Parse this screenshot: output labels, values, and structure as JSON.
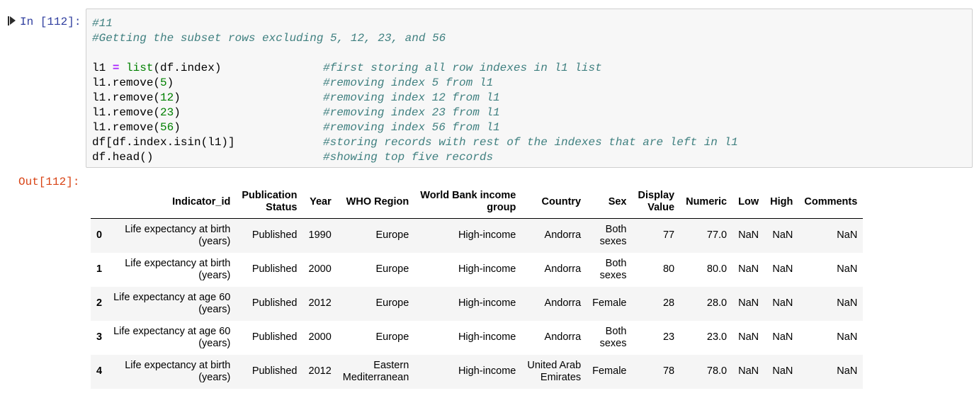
{
  "cell": {
    "in_prompt": "In [112]:",
    "out_prompt": "Out[112]:",
    "code_lines": [
      {
        "segments": [
          {
            "t": "#11",
            "k": "comment"
          }
        ],
        "comment": ""
      },
      {
        "segments": [
          {
            "t": "#Getting the subset rows excluding 5, 12, 23, and 56",
            "k": "comment"
          }
        ],
        "comment": ""
      },
      {
        "segments": [],
        "comment": ""
      },
      {
        "segments": [
          {
            "t": "l1 ",
            "k": "plain"
          },
          {
            "t": "=",
            "k": "op"
          },
          {
            "t": " ",
            "k": "plain"
          },
          {
            "t": "list",
            "k": "builtin"
          },
          {
            "t": "(df.index)",
            "k": "plain"
          }
        ],
        "comment": "#first storing all row indexes in l1 list"
      },
      {
        "segments": [
          {
            "t": "l1.remove(",
            "k": "plain"
          },
          {
            "t": "5",
            "k": "num"
          },
          {
            "t": ")",
            "k": "plain"
          }
        ],
        "comment": "#removing index 5 from l1"
      },
      {
        "segments": [
          {
            "t": "l1.remove(",
            "k": "plain"
          },
          {
            "t": "12",
            "k": "num"
          },
          {
            "t": ")",
            "k": "plain"
          }
        ],
        "comment": "#removing index 12 from l1"
      },
      {
        "segments": [
          {
            "t": "l1.remove(",
            "k": "plain"
          },
          {
            "t": "23",
            "k": "num"
          },
          {
            "t": ")",
            "k": "plain"
          }
        ],
        "comment": "#removing index 23 from l1"
      },
      {
        "segments": [
          {
            "t": "l1.remove(",
            "k": "plain"
          },
          {
            "t": "56",
            "k": "num"
          },
          {
            "t": ")",
            "k": "plain"
          }
        ],
        "comment": "#removing index 56 from l1"
      },
      {
        "segments": [
          {
            "t": "df[df.index.isin(l1)]",
            "k": "plain"
          }
        ],
        "comment": "#storing records with rest of the indexes that are left in l1"
      },
      {
        "segments": [
          {
            "t": "df.head()",
            "k": "plain"
          }
        ],
        "comment": "#showing top five records"
      }
    ]
  },
  "table": {
    "columns": [
      [
        "Indicator_id"
      ],
      [
        "Publication",
        "Status"
      ],
      [
        "Year"
      ],
      [
        "WHO Region"
      ],
      [
        "World Bank income",
        "group"
      ],
      [
        "Country"
      ],
      [
        "Sex"
      ],
      [
        "Display",
        "Value"
      ],
      [
        "Numeric"
      ],
      [
        "Low"
      ],
      [
        "High"
      ],
      [
        "Comments"
      ]
    ],
    "rows": [
      {
        "index": "0",
        "cells": [
          [
            "Life expectancy at birth",
            "(years)"
          ],
          [
            "Published"
          ],
          [
            "1990"
          ],
          [
            "Europe"
          ],
          [
            "High-income"
          ],
          [
            "Andorra"
          ],
          [
            "Both",
            "sexes"
          ],
          [
            "77"
          ],
          [
            "77.0"
          ],
          [
            "NaN"
          ],
          [
            "NaN"
          ],
          [
            "NaN"
          ]
        ]
      },
      {
        "index": "1",
        "cells": [
          [
            "Life expectancy at birth",
            "(years)"
          ],
          [
            "Published"
          ],
          [
            "2000"
          ],
          [
            "Europe"
          ],
          [
            "High-income"
          ],
          [
            "Andorra"
          ],
          [
            "Both",
            "sexes"
          ],
          [
            "80"
          ],
          [
            "80.0"
          ],
          [
            "NaN"
          ],
          [
            "NaN"
          ],
          [
            "NaN"
          ]
        ]
      },
      {
        "index": "2",
        "cells": [
          [
            "Life expectancy at age 60",
            "(years)"
          ],
          [
            "Published"
          ],
          [
            "2012"
          ],
          [
            "Europe"
          ],
          [
            "High-income"
          ],
          [
            "Andorra"
          ],
          [
            "Female"
          ],
          [
            "28"
          ],
          [
            "28.0"
          ],
          [
            "NaN"
          ],
          [
            "NaN"
          ],
          [
            "NaN"
          ]
        ]
      },
      {
        "index": "3",
        "cells": [
          [
            "Life expectancy at age 60",
            "(years)"
          ],
          [
            "Published"
          ],
          [
            "2000"
          ],
          [
            "Europe"
          ],
          [
            "High-income"
          ],
          [
            "Andorra"
          ],
          [
            "Both",
            "sexes"
          ],
          [
            "23"
          ],
          [
            "23.0"
          ],
          [
            "NaN"
          ],
          [
            "NaN"
          ],
          [
            "NaN"
          ]
        ]
      },
      {
        "index": "4",
        "cells": [
          [
            "Life expectancy at birth",
            "(years)"
          ],
          [
            "Published"
          ],
          [
            "2012"
          ],
          [
            "Eastern",
            "Mediterranean"
          ],
          [
            "High-income"
          ],
          [
            "United Arab",
            "Emirates"
          ],
          [
            "Female"
          ],
          [
            "78"
          ],
          [
            "78.0"
          ],
          [
            "NaN"
          ],
          [
            "NaN"
          ],
          [
            "NaN"
          ]
        ]
      }
    ]
  },
  "colors": {
    "in_prompt": "#303f9f",
    "out_prompt": "#d84315",
    "comment": "#408080",
    "operator": "#aa22ff",
    "builtin": "#008000",
    "number": "#008000",
    "cell_background": "#f7f7f7",
    "cell_border": "#cfcfcf",
    "striped_row": "#f5f5f5"
  },
  "icons": {
    "run": "run-cell-icon"
  }
}
